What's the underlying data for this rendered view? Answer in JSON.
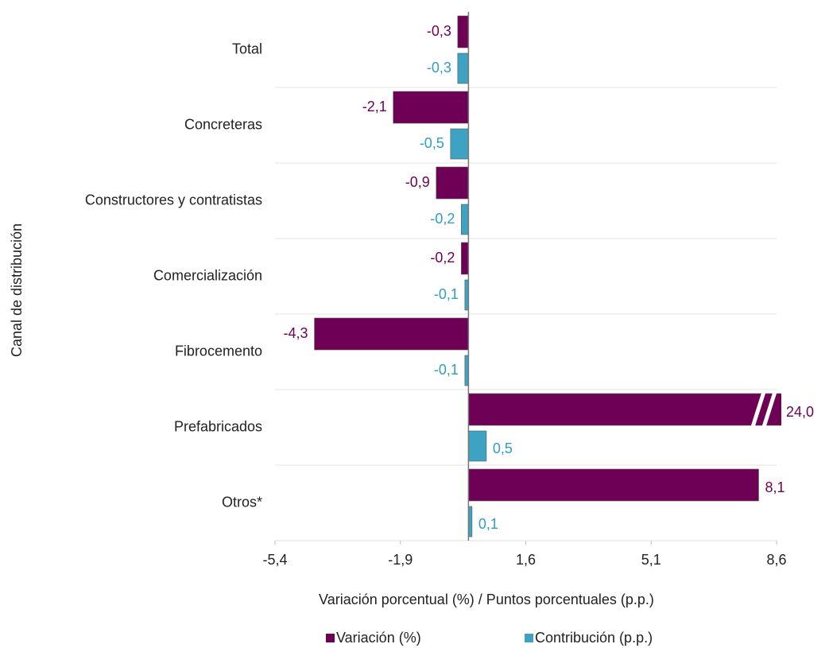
{
  "chart_data": {
    "type": "hbar",
    "x_label": "Variación porcentual (%) / Puntos porcentuales (p.p.)",
    "y_label": "Canal de distribución",
    "categories": [
      "Total",
      "Concreteras",
      "Constructores y contratistas",
      "Comercialización",
      "Fibrocemento",
      "Prefabricados",
      "Otros*"
    ],
    "series": [
      {
        "name": "Variación (%)",
        "color": "#6e0056",
        "label_color": "#6e0056",
        "values": [
          -0.3,
          -2.1,
          -0.9,
          -0.2,
          -4.3,
          24.0,
          8.1
        ],
        "value_labels": [
          "-0,3",
          "-2,1",
          "-0,9",
          "-0,2",
          "-4,3",
          "24,0",
          "8,1"
        ]
      },
      {
        "name": "Contribución (p.p.)",
        "color": "#3ea3c2",
        "label_color": "#2f9fc2",
        "values": [
          -0.3,
          -0.5,
          -0.2,
          -0.1,
          -0.1,
          0.5,
          0.1
        ],
        "value_labels": [
          "-0,3",
          "-0,5",
          "-0,2",
          "-0,1",
          "-0,1",
          "0,5",
          "0,1"
        ]
      }
    ],
    "xlim": [
      -5.4,
      8.6
    ],
    "xticks": [
      {
        "value": -5.4,
        "label": "-5,4"
      },
      {
        "value": -1.9,
        "label": "-1,9"
      },
      {
        "value": 1.6,
        "label": "1,6"
      },
      {
        "value": 5.1,
        "label": "5,1"
      },
      {
        "value": 8.6,
        "label": "8,6"
      }
    ],
    "legend": "bottom"
  }
}
